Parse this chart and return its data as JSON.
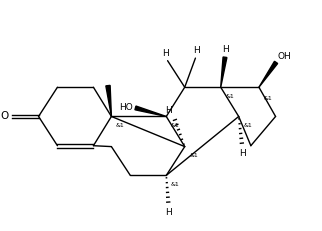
{
  "bg_color": "#ffffff",
  "line_color": "#000000",
  "lw": 1.0,
  "fs": 6.5,
  "fig_width": 3.22,
  "fig_height": 2.31,
  "dpi": 100,
  "xlim": [
    -0.3,
    7.0
  ],
  "ylim": [
    -0.5,
    3.8
  ]
}
